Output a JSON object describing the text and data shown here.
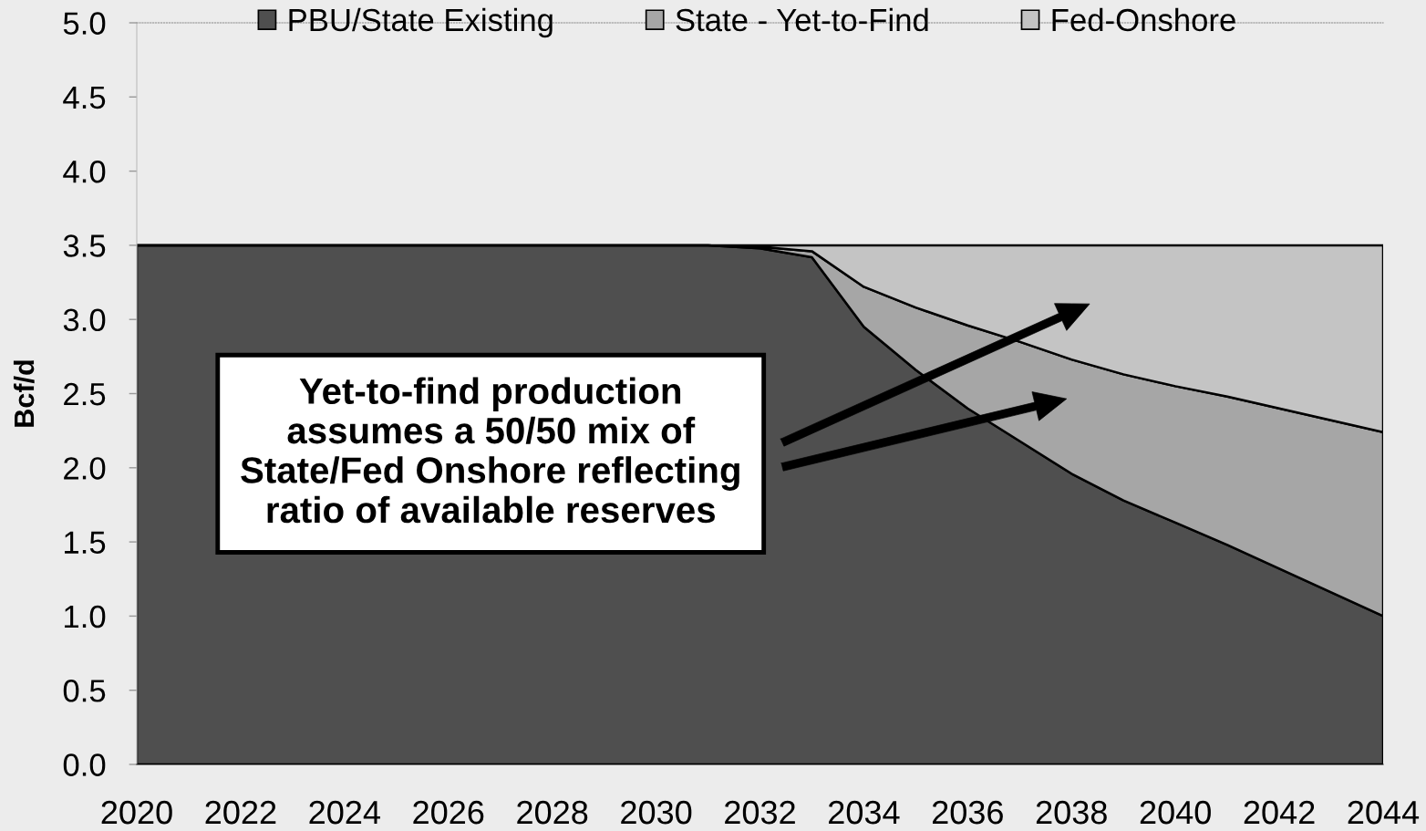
{
  "chart_data": {
    "type": "area",
    "stacked": true,
    "ylabel": "Bcf/d",
    "legend": "top",
    "x": [
      2020,
      2021,
      2022,
      2023,
      2024,
      2025,
      2026,
      2027,
      2028,
      2029,
      2030,
      2031,
      2032,
      2033,
      2034,
      2035,
      2036,
      2037,
      2038,
      2039,
      2040,
      2041,
      2042,
      2043,
      2044
    ],
    "xlim": [
      2020,
      2044
    ],
    "xticks": [
      2020,
      2022,
      2024,
      2026,
      2028,
      2030,
      2032,
      2034,
      2036,
      2038,
      2040,
      2042,
      2044
    ],
    "ylim": [
      0,
      5
    ],
    "yticks": [
      {
        "value": 0,
        "label": "0.0"
      },
      {
        "value": 0.5,
        "label": "0.5"
      },
      {
        "value": 1,
        "label": "1.0"
      },
      {
        "value": 1.5,
        "label": "1.5"
      },
      {
        "value": 2,
        "label": "2.0"
      },
      {
        "value": 2.5,
        "label": "2.5"
      },
      {
        "value": 3,
        "label": "3.0"
      },
      {
        "value": 3.5,
        "label": "3.5"
      },
      {
        "value": 4,
        "label": "4.0"
      },
      {
        "value": 4.5,
        "label": "4.5"
      },
      {
        "value": 5,
        "label": "5.0"
      }
    ],
    "series": [
      {
        "name": "PBU/State Existing",
        "color": "#4f4f4f",
        "values": [
          3.5,
          3.5,
          3.5,
          3.5,
          3.5,
          3.5,
          3.5,
          3.5,
          3.5,
          3.5,
          3.5,
          3.5,
          3.48,
          3.42,
          2.95,
          2.66,
          2.4,
          2.18,
          1.96,
          1.78,
          1.63,
          1.48,
          1.32,
          1.16,
          1.0
        ]
      },
      {
        "name": "State - Yet-to-Find",
        "color": "#a6a6a6",
        "values": [
          0,
          0,
          0,
          0,
          0,
          0,
          0,
          0,
          0,
          0,
          0,
          0,
          0.01,
          0.04,
          0.27,
          0.42,
          0.56,
          0.67,
          0.77,
          0.85,
          0.92,
          1.0,
          1.08,
          1.16,
          1.24
        ]
      },
      {
        "name": "Fed-Onshore",
        "color": "#c4c4c4",
        "values": [
          0,
          0,
          0,
          0,
          0,
          0,
          0,
          0,
          0,
          0,
          0,
          0,
          0.01,
          0.04,
          0.28,
          0.42,
          0.54,
          0.65,
          0.77,
          0.87,
          0.95,
          1.02,
          1.1,
          1.18,
          1.26
        ]
      }
    ],
    "annotations": [
      "Yet-to-find production\nassumes a 50/50 mix of\nState/Fed Onshore reflecting\nratio of available reserves"
    ]
  }
}
